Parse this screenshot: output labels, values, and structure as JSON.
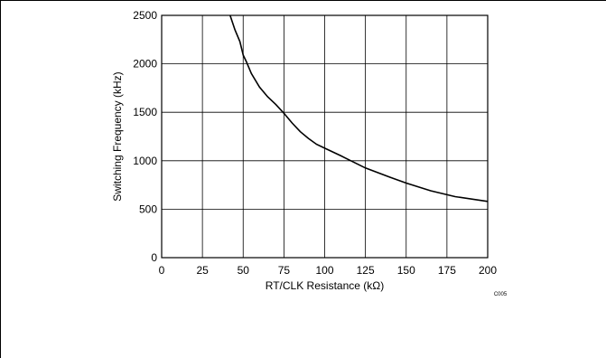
{
  "chart_data": {
    "type": "line",
    "title": "",
    "xlabel": "RT/CLK Resistance (kΩ)",
    "ylabel": "Switching Frequency (kHz)",
    "xlim": [
      0,
      200
    ],
    "ylim": [
      0,
      2500
    ],
    "x_ticks": [
      "0",
      "25",
      "50",
      "75",
      "100",
      "125",
      "150",
      "175",
      "200"
    ],
    "y_ticks": [
      "0",
      "500",
      "1000",
      "1500",
      "2000",
      "2500"
    ],
    "grid": true,
    "legend": "none",
    "code": "C005",
    "series": [
      {
        "x": [
          42,
          45,
          48,
          50,
          52,
          55,
          60,
          65,
          70,
          75,
          80,
          85,
          90,
          95,
          100,
          110,
          125,
          140,
          150,
          165,
          180,
          200
        ],
        "y": [
          2500,
          2350,
          2230,
          2090,
          2020,
          1900,
          1760,
          1660,
          1580,
          1490,
          1390,
          1300,
          1230,
          1170,
          1130,
          1050,
          925,
          830,
          770,
          690,
          630,
          580
        ]
      }
    ],
    "line_color": "#000000"
  }
}
